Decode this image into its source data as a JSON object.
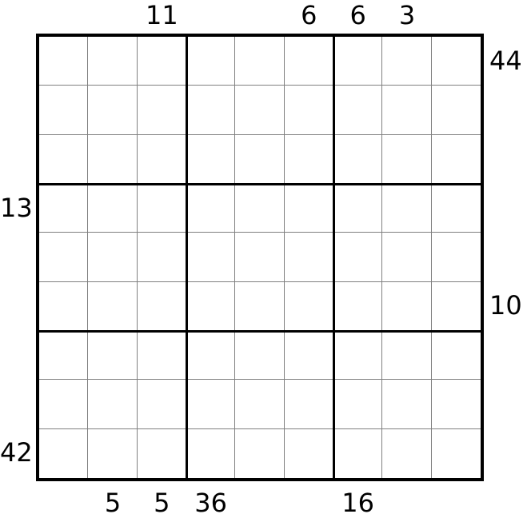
{
  "grid": {
    "rows": 9,
    "cols": 9,
    "box_rows": 3,
    "box_cols": 3
  },
  "clues": {
    "top": [
      {
        "col": 3,
        "value": "11"
      },
      {
        "col": 6,
        "value": "6"
      },
      {
        "col": 7,
        "value": "6"
      },
      {
        "col": 8,
        "value": "3"
      }
    ],
    "right": [
      {
        "row": 1,
        "value": "44"
      },
      {
        "row": 6,
        "value": "10"
      }
    ],
    "bottom": [
      {
        "col": 2,
        "value": "5"
      },
      {
        "col": 3,
        "value": "5"
      },
      {
        "col": 4,
        "value": "36"
      },
      {
        "col": 7,
        "value": "16"
      }
    ],
    "left": [
      {
        "row": 4,
        "value": "13"
      },
      {
        "row": 9,
        "value": "42"
      }
    ]
  },
  "colors": {
    "thin_line": "#808080",
    "thick_line": "#000000",
    "background": "#ffffff",
    "text": "#000000"
  }
}
